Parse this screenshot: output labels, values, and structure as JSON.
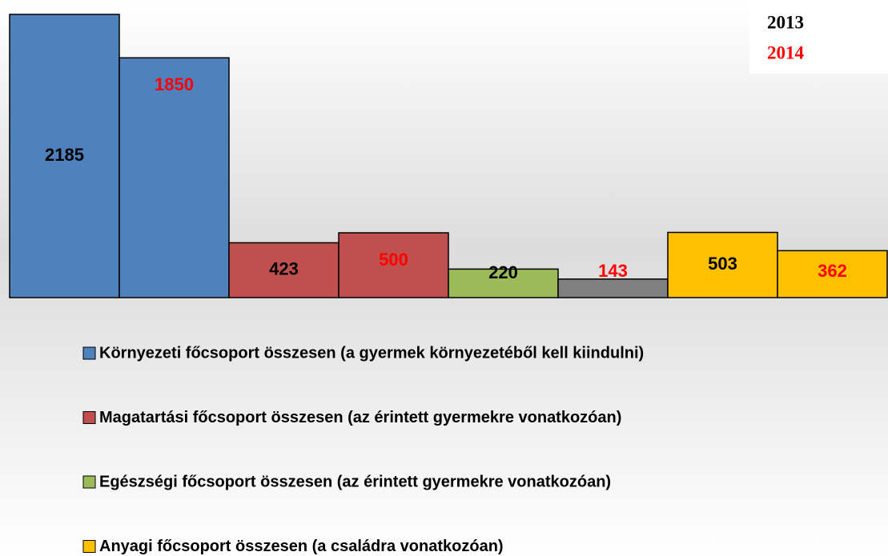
{
  "chart_data": {
    "type": "bar",
    "categories": [
      "Környezeti főcsoport összesen (a gyermek környezetéből kell kiindulni)",
      "Magatartási főcsoport összesen (az érintett gyermekre vonatkozóan)",
      "Egészségi főcsoport összesen (az érintett gyermekre vonatkozóan)",
      "Anyagi főcsoport összesen (a családra vonatkozóan)"
    ],
    "category_colors": [
      "#4f81bd",
      "#c0504d",
      "#9bbb59",
      "#ffc000"
    ],
    "series": [
      {
        "name": "2013",
        "color": "#000000",
        "bar_colors": [
          "#4f81bd",
          "#c0504d",
          "#9bbb59",
          "#ffc000"
        ],
        "values": [
          2185,
          423,
          220,
          503
        ]
      },
      {
        "name": "2014",
        "color": "#ff0000",
        "bar_colors": [
          "#4f81bd",
          "#c0504d",
          "#808080",
          "#ffc000"
        ],
        "values": [
          1850,
          500,
          143,
          362
        ]
      }
    ],
    "ylim": [
      0,
      2185
    ]
  }
}
